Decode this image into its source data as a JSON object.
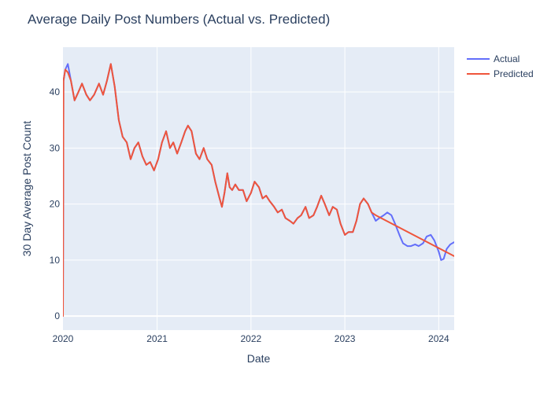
{
  "chart_data": {
    "type": "line",
    "title": "Average Daily Post Numbers (Actual vs. Predicted)",
    "xlabel": "Date",
    "ylabel": "30 Day Average Post Count",
    "x_range": [
      "2020-01-01",
      "2024-03-01"
    ],
    "ylim": [
      -2.5,
      48
    ],
    "x_ticks": [
      {
        "date": "2020-01-01",
        "label": "2020"
      },
      {
        "date": "2021-01-01",
        "label": "2021"
      },
      {
        "date": "2022-01-01",
        "label": "2022"
      },
      {
        "date": "2023-01-01",
        "label": "2023"
      },
      {
        "date": "2024-01-01",
        "label": "2024"
      }
    ],
    "y_ticks": [
      0,
      10,
      20,
      30,
      40
    ],
    "grid": true,
    "legend_position": "top-right",
    "colors": {
      "actual": "#636efa",
      "predicted": "#ef553b",
      "plot_bg": "#e5ecf6",
      "grid": "#ffffff",
      "text": "#2a3f5f"
    },
    "series": [
      {
        "name": "Actual",
        "color": "#636efa",
        "points": [
          [
            "2020-01-01",
            0
          ],
          [
            "2020-01-03",
            42
          ],
          [
            "2020-01-10",
            44
          ],
          [
            "2020-01-20",
            45
          ],
          [
            "2020-02-01",
            42
          ],
          [
            "2020-02-15",
            38.5
          ],
          [
            "2020-03-01",
            40
          ],
          [
            "2020-03-15",
            41.5
          ],
          [
            "2020-04-01",
            39.5
          ],
          [
            "2020-04-15",
            38.5
          ],
          [
            "2020-05-01",
            39.5
          ],
          [
            "2020-05-20",
            41.5
          ],
          [
            "2020-06-05",
            39.5
          ],
          [
            "2020-06-20",
            42
          ],
          [
            "2020-07-05",
            45
          ],
          [
            "2020-07-20",
            41
          ],
          [
            "2020-08-05",
            35
          ],
          [
            "2020-08-20",
            32
          ],
          [
            "2020-09-05",
            31
          ],
          [
            "2020-09-20",
            28
          ],
          [
            "2020-10-05",
            30
          ],
          [
            "2020-10-20",
            31
          ],
          [
            "2020-11-05",
            28.5
          ],
          [
            "2020-11-20",
            27
          ],
          [
            "2020-12-05",
            27.5
          ],
          [
            "2020-12-20",
            26
          ],
          [
            "2021-01-05",
            28
          ],
          [
            "2021-01-20",
            31
          ],
          [
            "2021-02-05",
            33
          ],
          [
            "2021-02-20",
            30
          ],
          [
            "2021-03-05",
            31
          ],
          [
            "2021-03-20",
            29
          ],
          [
            "2021-04-05",
            31
          ],
          [
            "2021-04-20",
            33
          ],
          [
            "2021-05-01",
            34
          ],
          [
            "2021-05-15",
            33
          ],
          [
            "2021-06-01",
            29
          ],
          [
            "2021-06-15",
            28
          ],
          [
            "2021-07-01",
            30
          ],
          [
            "2021-07-15",
            28
          ],
          [
            "2021-08-01",
            27
          ],
          [
            "2021-08-15",
            24
          ],
          [
            "2021-09-01",
            21
          ],
          [
            "2021-09-10",
            19.5
          ],
          [
            "2021-09-20",
            22
          ],
          [
            "2021-10-01",
            25.5
          ],
          [
            "2021-10-10",
            23
          ],
          [
            "2021-10-20",
            22.5
          ],
          [
            "2021-11-01",
            23.5
          ],
          [
            "2021-11-15",
            22.5
          ],
          [
            "2021-12-01",
            22.5
          ],
          [
            "2021-12-15",
            20.5
          ],
          [
            "2022-01-01",
            22
          ],
          [
            "2022-01-15",
            24
          ],
          [
            "2022-02-01",
            23
          ],
          [
            "2022-02-15",
            21
          ],
          [
            "2022-03-01",
            21.5
          ],
          [
            "2022-03-15",
            20.5
          ],
          [
            "2022-04-01",
            19.5
          ],
          [
            "2022-04-15",
            18.5
          ],
          [
            "2022-05-01",
            19
          ],
          [
            "2022-05-15",
            17.5
          ],
          [
            "2022-06-01",
            17
          ],
          [
            "2022-06-15",
            16.5
          ],
          [
            "2022-07-01",
            17.5
          ],
          [
            "2022-07-15",
            18
          ],
          [
            "2022-08-01",
            19.5
          ],
          [
            "2022-08-15",
            17.5
          ],
          [
            "2022-09-01",
            18
          ],
          [
            "2022-09-15",
            19.5
          ],
          [
            "2022-10-01",
            21.5
          ],
          [
            "2022-10-15",
            20
          ],
          [
            "2022-11-01",
            18
          ],
          [
            "2022-11-15",
            19.5
          ],
          [
            "2022-12-01",
            19
          ],
          [
            "2022-12-15",
            16.5
          ],
          [
            "2023-01-01",
            14.5
          ],
          [
            "2023-01-15",
            15
          ],
          [
            "2023-02-01",
            15
          ],
          [
            "2023-02-15",
            17
          ],
          [
            "2023-03-01",
            20
          ],
          [
            "2023-03-15",
            21
          ],
          [
            "2023-04-01",
            20
          ],
          [
            "2023-04-15",
            18.5
          ],
          [
            "2023-05-01",
            17
          ],
          [
            "2023-05-15",
            17.5
          ],
          [
            "2023-06-01",
            18
          ],
          [
            "2023-06-15",
            18.5
          ],
          [
            "2023-07-01",
            18
          ],
          [
            "2023-07-15",
            16.5
          ],
          [
            "2023-08-01",
            14.5
          ],
          [
            "2023-08-15",
            13
          ],
          [
            "2023-09-01",
            12.5
          ],
          [
            "2023-09-15",
            12.5
          ],
          [
            "2023-10-01",
            12.8
          ],
          [
            "2023-10-15",
            12.5
          ],
          [
            "2023-11-01",
            13
          ],
          [
            "2023-11-15",
            14.2
          ],
          [
            "2023-12-01",
            14.5
          ],
          [
            "2023-12-15",
            13.5
          ],
          [
            "2024-01-01",
            11.5
          ],
          [
            "2024-01-10",
            10
          ],
          [
            "2024-01-20",
            10.2
          ],
          [
            "2024-02-01",
            12
          ],
          [
            "2024-02-15",
            12.8
          ],
          [
            "2024-03-01",
            13.2
          ]
        ]
      },
      {
        "name": "Predicted",
        "color": "#ef553b",
        "points": [
          [
            "2020-01-01",
            0
          ],
          [
            "2020-01-03",
            42
          ],
          [
            "2020-01-10",
            44
          ],
          [
            "2020-01-20",
            43.5
          ],
          [
            "2020-02-01",
            42
          ],
          [
            "2020-02-15",
            38.5
          ],
          [
            "2020-03-01",
            40
          ],
          [
            "2020-03-15",
            41.5
          ],
          [
            "2020-04-01",
            39.5
          ],
          [
            "2020-04-15",
            38.5
          ],
          [
            "2020-05-01",
            39.5
          ],
          [
            "2020-05-20",
            41.5
          ],
          [
            "2020-06-05",
            39.5
          ],
          [
            "2020-06-20",
            42
          ],
          [
            "2020-07-05",
            45
          ],
          [
            "2020-07-20",
            41
          ],
          [
            "2020-08-05",
            35
          ],
          [
            "2020-08-20",
            32
          ],
          [
            "2020-09-05",
            31
          ],
          [
            "2020-09-20",
            28
          ],
          [
            "2020-10-05",
            30
          ],
          [
            "2020-10-20",
            31
          ],
          [
            "2020-11-05",
            28.5
          ],
          [
            "2020-11-20",
            27
          ],
          [
            "2020-12-05",
            27.5
          ],
          [
            "2020-12-20",
            26
          ],
          [
            "2021-01-05",
            28
          ],
          [
            "2021-01-20",
            31
          ],
          [
            "2021-02-05",
            33
          ],
          [
            "2021-02-20",
            30
          ],
          [
            "2021-03-05",
            31
          ],
          [
            "2021-03-20",
            29
          ],
          [
            "2021-04-05",
            31
          ],
          [
            "2021-04-20",
            33
          ],
          [
            "2021-05-01",
            34
          ],
          [
            "2021-05-15",
            33
          ],
          [
            "2021-06-01",
            29
          ],
          [
            "2021-06-15",
            28
          ],
          [
            "2021-07-01",
            30
          ],
          [
            "2021-07-15",
            28
          ],
          [
            "2021-08-01",
            27
          ],
          [
            "2021-08-15",
            24
          ],
          [
            "2021-09-01",
            21
          ],
          [
            "2021-09-10",
            19.5
          ],
          [
            "2021-09-20",
            22
          ],
          [
            "2021-10-01",
            25.5
          ],
          [
            "2021-10-10",
            23
          ],
          [
            "2021-10-20",
            22.5
          ],
          [
            "2021-11-01",
            23.5
          ],
          [
            "2021-11-15",
            22.5
          ],
          [
            "2021-12-01",
            22.5
          ],
          [
            "2021-12-15",
            20.5
          ],
          [
            "2022-01-01",
            22
          ],
          [
            "2022-01-15",
            24
          ],
          [
            "2022-02-01",
            23
          ],
          [
            "2022-02-15",
            21
          ],
          [
            "2022-03-01",
            21.5
          ],
          [
            "2022-03-15",
            20.5
          ],
          [
            "2022-04-01",
            19.5
          ],
          [
            "2022-04-15",
            18.5
          ],
          [
            "2022-05-01",
            19
          ],
          [
            "2022-05-15",
            17.5
          ],
          [
            "2022-06-01",
            17
          ],
          [
            "2022-06-15",
            16.5
          ],
          [
            "2022-07-01",
            17.5
          ],
          [
            "2022-07-15",
            18
          ],
          [
            "2022-08-01",
            19.5
          ],
          [
            "2022-08-15",
            17.5
          ],
          [
            "2022-09-01",
            18
          ],
          [
            "2022-09-15",
            19.5
          ],
          [
            "2022-10-01",
            21.5
          ],
          [
            "2022-10-15",
            20
          ],
          [
            "2022-11-01",
            18
          ],
          [
            "2022-11-15",
            19.5
          ],
          [
            "2022-12-01",
            19
          ],
          [
            "2022-12-15",
            16.5
          ],
          [
            "2023-01-01",
            14.5
          ],
          [
            "2023-01-15",
            15
          ],
          [
            "2023-02-01",
            15
          ],
          [
            "2023-02-15",
            17
          ],
          [
            "2023-03-01",
            20
          ],
          [
            "2023-03-15",
            21
          ],
          [
            "2023-04-01",
            20
          ],
          [
            "2023-04-15",
            18.5
          ],
          [
            "2023-05-01",
            18
          ],
          [
            "2024-03-01",
            10.7
          ]
        ]
      }
    ]
  }
}
